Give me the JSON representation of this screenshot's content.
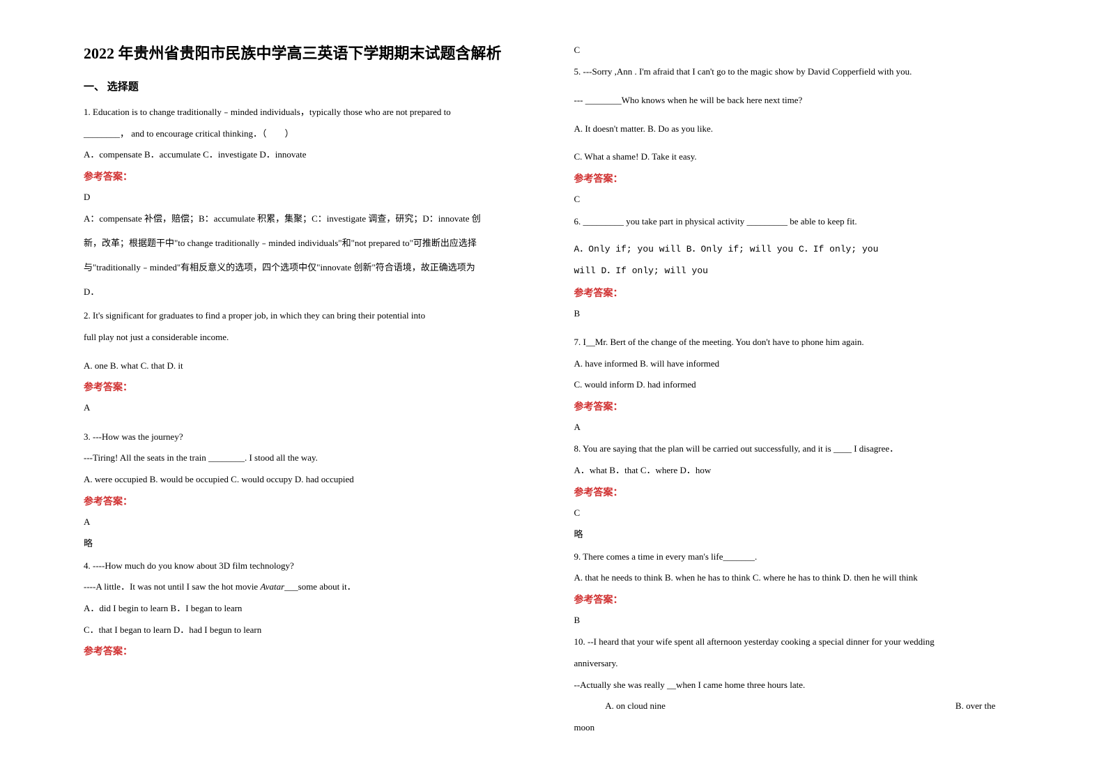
{
  "title": "2022 年贵州省贵阳市民族中学高三英语下学期期末试题含解析",
  "section_heading": "一、 选择题",
  "answer_label": "参考答案：",
  "omit": "略",
  "q1": {
    "line1": "1. Education is to change traditionally﹣minded individuals，typically those who are not prepared to",
    "line2": "________， and to encourage critical thinking．（　　）",
    "options": "A．compensate         B．accumulate  C．investigate    D．innovate",
    "answer": "D",
    "explain1": "A：compensate 补偿，赔偿；B：accumulate 积累，集聚；C：investigate 调查，研究；D：innovate 创",
    "explain2": "新，改革；根据题干中\"to change traditionally﹣minded individuals\"和\"not prepared to\"可推断出应选择",
    "explain3": "与\"traditionally﹣minded\"有相反意义的选项，四个选项中仅\"innovate 创新\"符合语境，故正确选项为",
    "explain4": "D．"
  },
  "q2": {
    "line1": "2. It's significant for graduates to find a proper job,       in which they can bring their potential into",
    "line2": "full play not just a considerable income.",
    "options": "A. one          B. what           C. that             D. it",
    "answer": "A"
  },
  "q3": {
    "line1": "3. ---How was the journey?",
    "line2": "   ---Tiring! All the seats in the train ________. I stood all the way.",
    "options": "      A. were occupied    B. would be occupied     C. would occupy     D. had occupied",
    "answer": "A"
  },
  "q4": {
    "line1": "4. ----How much do you know about 3D film technology?",
    "line2_a": "  ----A little．It was not until I saw the hot movie ",
    "line2_italic": "Avatar",
    "line2_b": "___some about it．",
    "options1": "        A．did I begin to learn    B．I began to learn",
    "options2": "  C．that I began to learn   D．had I begun to learn",
    "answer": "C"
  },
  "q5": {
    "line1": "5. ---Sorry ,Ann . I'm afraid that I can't go to the magic show by David Copperfield with you.",
    "line2": "--- ________Who knows when he will be back here next time?",
    "options1": "   A. It doesn't matter.               B. Do as you like.",
    "options2": "   C. What a shame!                 D. Take it easy.",
    "answer": "C"
  },
  "q6": {
    "line1": "6. _________ you take part in physical activity _________ be able to keep fit.",
    "options1": "    A．Only if; you will      B．Only if; will you    C．If only; you",
    "options2": "will             D．If only; will you",
    "answer": "B"
  },
  "q7": {
    "line1": "7. I__Mr. Bert of the change of the meeting. You don't have to phone him again.",
    "options1": "  A. have informed    B. will have informed",
    "options2": "  C. would inform    D. had informed",
    "answer": "A"
  },
  "q8": {
    "line1": "8. You are saying that the plan will be carried out successfully, and it is ____ I disagree．",
    "options": "        A．what             B．that           C．where        D．how",
    "answer": "C"
  },
  "q9": {
    "line1": "9. There comes a time in every man's life_______.",
    "options": "A. that he needs to think B. when he has to think C. where he has to think     D. then he will think",
    "answer": "B"
  },
  "q10": {
    "line1": "10. --I heard that your wife spent all afternoon yesterday cooking a special dinner for your wedding",
    "line2": "anniversary.",
    "line3": "--Actually she was really __when I came home three hours late.",
    "options1": "              A. on cloud nine                                                                                                                                B. over the",
    "options2": "moon"
  }
}
